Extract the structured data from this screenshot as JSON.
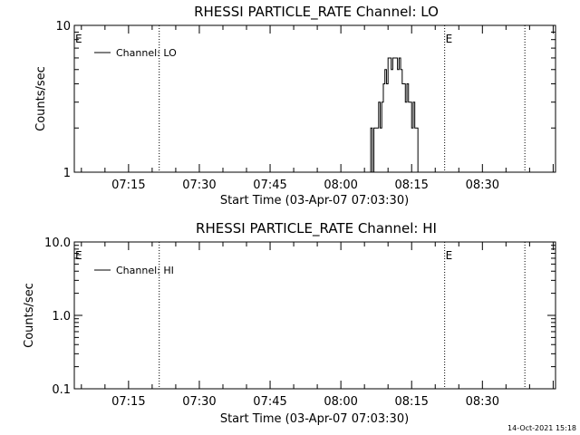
{
  "footer_timestamp": "14-Oct-2021 15:18",
  "chart_data": [
    {
      "type": "line",
      "title": "RHESSI PARTICLE_RATE Channel: LO",
      "xlabel": "Start Time (03-Apr-07 07:03:30)",
      "ylabel": "Counts/sec",
      "yscale": "log",
      "ylim": [
        1,
        10
      ],
      "ytick_labels": [
        "1",
        "10"
      ],
      "xlim": [
        "07:03:30",
        "08:45:30"
      ],
      "xtick_labels": [
        "07:15",
        "07:30",
        "07:45",
        "08:00",
        "08:15",
        "08:30"
      ],
      "legend_position": "top-left",
      "eclipse_markers": [
        {
          "time": "07:03:30",
          "label": "E"
        },
        {
          "time": "08:22:00",
          "label": "E"
        }
      ],
      "dotted_lines": [
        "07:21:30",
        "08:22:00",
        "08:39:00"
      ],
      "series": [
        {
          "name": "Channel: LO",
          "x": [
            "07:03:30",
            "08:06:00",
            "08:06:20",
            "08:06:40",
            "08:07:00",
            "08:07:20",
            "08:07:40",
            "08:08:00",
            "08:08:20",
            "08:08:40",
            "08:09:00",
            "08:09:20",
            "08:09:40",
            "08:10:00",
            "08:10:20",
            "08:10:40",
            "08:11:00",
            "08:11:20",
            "08:11:40",
            "08:12:00",
            "08:12:20",
            "08:12:40",
            "08:13:00",
            "08:13:20",
            "08:13:40",
            "08:14:00",
            "08:14:20",
            "08:14:40",
            "08:15:00",
            "08:15:20",
            "08:15:40",
            "08:16:00",
            "08:16:20",
            "08:16:40"
          ],
          "y": [
            1,
            1,
            2,
            1,
            2,
            2,
            2,
            3,
            2,
            3,
            4,
            5,
            4,
            6,
            6,
            5,
            6,
            6,
            6,
            5,
            6,
            5,
            4,
            4,
            3,
            4,
            3,
            3,
            2,
            3,
            2,
            2,
            1,
            1
          ]
        }
      ]
    },
    {
      "type": "line",
      "title": "RHESSI PARTICLE_RATE Channel: HI",
      "xlabel": "Start Time (03-Apr-07 07:03:30)",
      "ylabel": "Counts/sec",
      "yscale": "log",
      "ylim": [
        0.1,
        10
      ],
      "ytick_labels": [
        "0.1",
        "1.0",
        "10.0"
      ],
      "xlim": [
        "07:03:30",
        "08:45:30"
      ],
      "xtick_labels": [
        "07:15",
        "07:30",
        "07:45",
        "08:00",
        "08:15",
        "08:30"
      ],
      "legend_position": "top-left",
      "eclipse_markers": [
        {
          "time": "07:03:30",
          "label": "E"
        },
        {
          "time": "08:22:00",
          "label": "E"
        }
      ],
      "dotted_lines": [
        "07:21:30",
        "08:22:00",
        "08:39:00"
      ],
      "series": [
        {
          "name": "Channel: HI",
          "x": [],
          "y": []
        }
      ]
    }
  ]
}
